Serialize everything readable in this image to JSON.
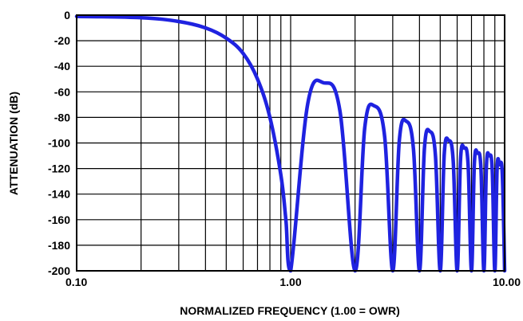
{
  "chart_data": {
    "type": "line",
    "title": "",
    "xlabel": "NORMALIZED FREQUENCY (1.00 = OWR)",
    "ylabel": "ATTENUATION (dB)",
    "x_scale": "log",
    "xlim": [
      0.1,
      10
    ],
    "ylim": [
      -200,
      0
    ],
    "x_tick_labels": [
      {
        "value": 0.1,
        "label": "0.10"
      },
      {
        "value": 1,
        "label": "1.00"
      },
      {
        "value": 10,
        "label": "10.00"
      }
    ],
    "y_ticks": [
      0,
      -20,
      -40,
      -60,
      -80,
      -100,
      -120,
      -140,
      -160,
      -180,
      -200
    ],
    "grid": true,
    "series": [
      {
        "color": "#1f22e0",
        "x": [
          0.1,
          0.2,
          0.3,
          0.4,
          0.5,
          0.6,
          0.7,
          0.8,
          0.9,
          0.95,
          1.0,
          1.2,
          1.43,
          1.7,
          2.0,
          2.22,
          2.46,
          2.75,
          3.0,
          3.22,
          3.47,
          3.75,
          4.0,
          4.22,
          4.47,
          4.75,
          5.0,
          5.22,
          5.47,
          5.75,
          6.0,
          6.22,
          6.47,
          6.75,
          7.0,
          7.22,
          7.47,
          7.75,
          8.0,
          8.22,
          8.47,
          8.75,
          9.0,
          9.22,
          9.47,
          9.75,
          10.0
        ],
        "y": [
          -1,
          -2,
          -5,
          -10,
          -18,
          -30,
          -50,
          -80,
          -125,
          -160,
          -200,
          -70,
          -53,
          -75,
          -200,
          -88,
          -71,
          -95,
          -200,
          -98,
          -83,
          -105,
          -200,
          -104,
          -91,
          -110,
          -200,
          -109,
          -98,
          -114,
          -200,
          -113,
          -104,
          -117,
          -200,
          -116,
          -108,
          -120,
          -200,
          -118,
          -110,
          -121,
          -200,
          -120,
          -117,
          -124,
          -200
        ]
      }
    ]
  }
}
